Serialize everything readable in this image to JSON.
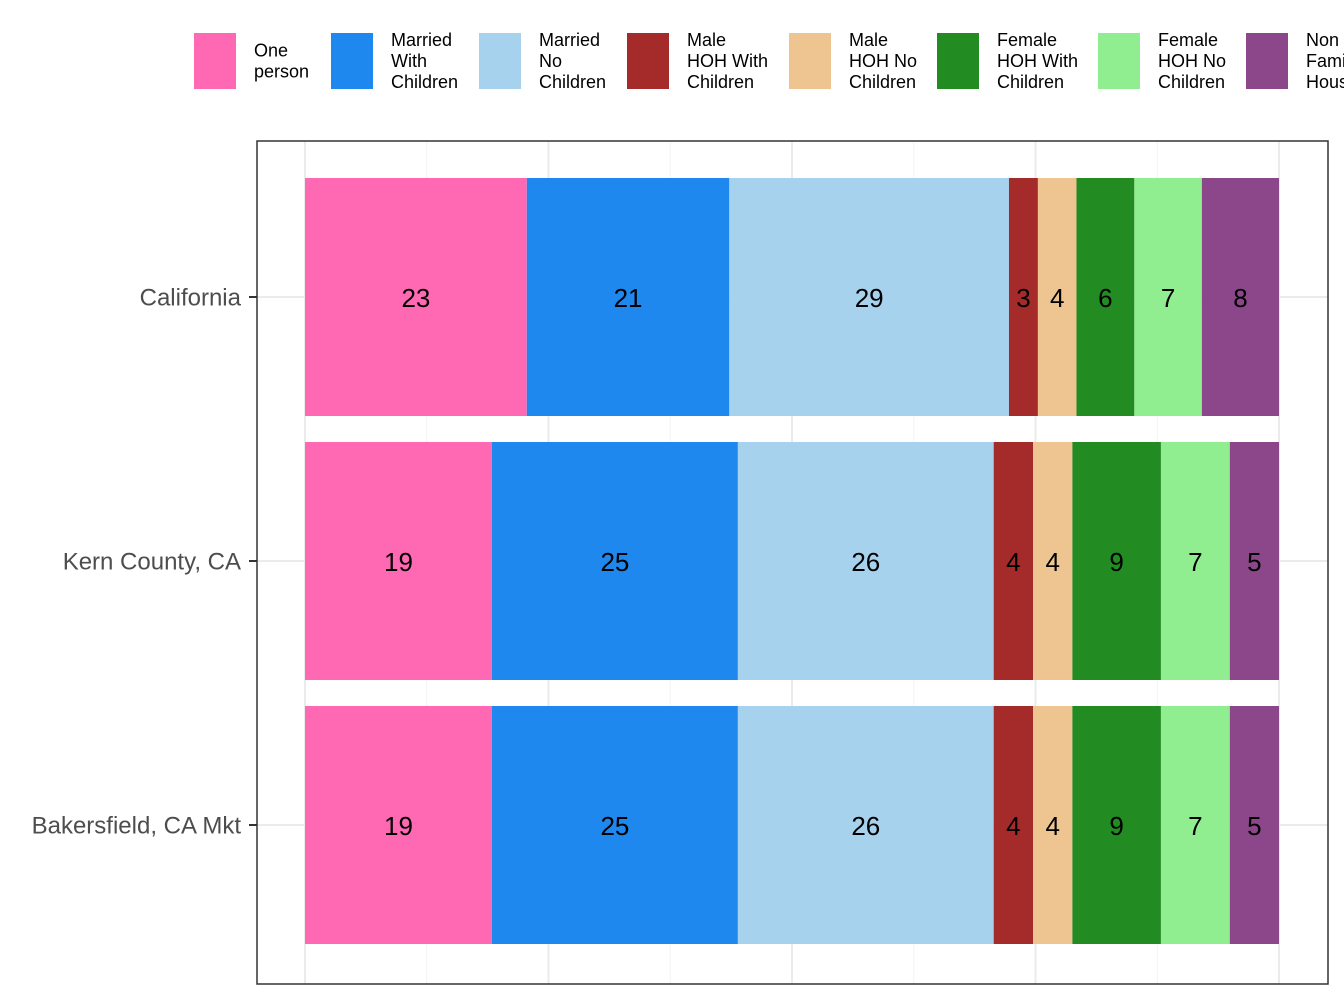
{
  "chart_data": {
    "type": "bar",
    "orientation": "horizontal",
    "stacked": true,
    "normalized_percent": true,
    "categories": [
      "California",
      "Kern County, CA",
      "Bakersfield, CA Mkt"
    ],
    "series": [
      {
        "name": "One person",
        "legend_lines": [
          "One",
          "person"
        ],
        "color": "#FF69B4",
        "values": [
          23,
          19,
          19
        ]
      },
      {
        "name": "Married With Children",
        "legend_lines": [
          "Married",
          "With",
          "Children"
        ],
        "color": "#1E88EE",
        "values": [
          21,
          25,
          25
        ]
      },
      {
        "name": "Married No Children",
        "legend_lines": [
          "Married",
          "No",
          "Children"
        ],
        "color": "#A6D2ED",
        "values": [
          29,
          26,
          26
        ]
      },
      {
        "name": "Male HOH With Children",
        "legend_lines": [
          "Male",
          "HOH With",
          "Children"
        ],
        "color": "#A52A2A",
        "values": [
          3,
          4,
          4
        ]
      },
      {
        "name": "Male HOH No Children",
        "legend_lines": [
          "Male",
          "HOH No",
          "Children"
        ],
        "color": "#EEC591",
        "values": [
          4,
          4,
          4
        ]
      },
      {
        "name": "Female HOH With Children",
        "legend_lines": [
          "Female",
          "HOH With",
          "Children"
        ],
        "color": "#228B22",
        "values": [
          6,
          9,
          9
        ]
      },
      {
        "name": "Female HOH No Children",
        "legend_lines": [
          "Female",
          "HOH No",
          "Children"
        ],
        "color": "#90EE90",
        "values": [
          7,
          7,
          7
        ]
      },
      {
        "name": "Non Family Households",
        "legend_lines": [
          "Non",
          "Family",
          "Households"
        ],
        "color": "#8B4789",
        "values": [
          8,
          5,
          5
        ]
      }
    ],
    "title": "",
    "xlabel": "",
    "ylabel": "",
    "xlim": [
      0,
      100
    ],
    "grid": true,
    "legend_position": "top"
  }
}
